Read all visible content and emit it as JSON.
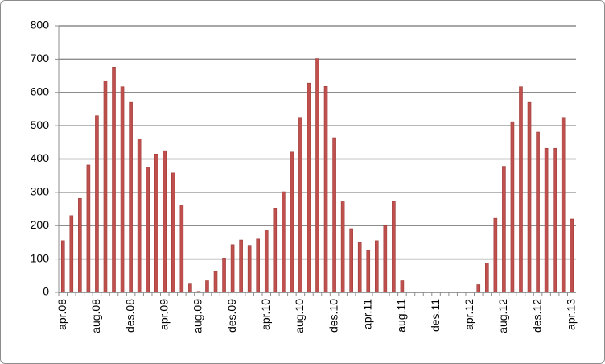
{
  "chart_data": {
    "type": "bar",
    "categories": [
      "apr.08",
      null,
      null,
      null,
      "aug.08",
      null,
      null,
      null,
      "des.08",
      null,
      null,
      null,
      "apr.09",
      null,
      null,
      null,
      "aug.09",
      null,
      null,
      null,
      "des.09",
      null,
      null,
      null,
      "apr.10",
      null,
      null,
      null,
      "aug.10",
      null,
      null,
      null,
      "des.10",
      null,
      null,
      null,
      "apr.11",
      null,
      null,
      null,
      "aug.11",
      null,
      null,
      null,
      "des.11",
      null,
      null,
      null,
      "apr.12",
      null,
      null,
      null,
      "aug.12",
      null,
      null,
      null,
      "des.12",
      null,
      null,
      null,
      "apr.13"
    ],
    "values": [
      155,
      230,
      282,
      382,
      530,
      635,
      676,
      617,
      570,
      460,
      376,
      415,
      425,
      358,
      262,
      25,
      3,
      35,
      63,
      103,
      143,
      157,
      141,
      160,
      187,
      253,
      302,
      421,
      525,
      628,
      702,
      618,
      464,
      272,
      191,
      150,
      126,
      155,
      200,
      273,
      35,
      0,
      0,
      0,
      0,
      0,
      0,
      0,
      0,
      23,
      88,
      222,
      378,
      512,
      617,
      570,
      481,
      432,
      432,
      525,
      220
    ],
    "color": "#c0504d",
    "ylim": [
      0,
      800
    ],
    "yticks": [
      0,
      100,
      200,
      300,
      400,
      500,
      600,
      700,
      800
    ],
    "grid": true
  }
}
